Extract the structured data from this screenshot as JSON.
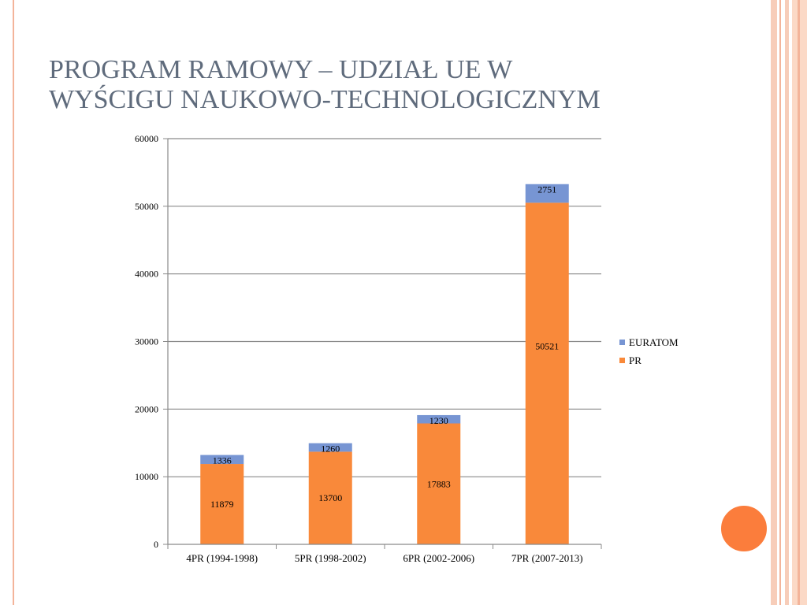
{
  "slide": {
    "title": "PROGRAM RAMOWY – UDZIAŁ UE W\nWYŚCIGU NAUKOWO-TECHNOLOGICZNYM",
    "colors": {
      "title": "#5f6b7c",
      "accent_orange": "#fb7d3c",
      "decor_light": "#f7cdb9"
    }
  },
  "chart_data": {
    "type": "bar",
    "stacked": true,
    "categories": [
      "4PR (1994-1998)",
      "5PR (1998-2002)",
      "6PR (2002-2006)",
      "7PR (2007-2013)"
    ],
    "series": [
      {
        "name": "PR",
        "values": [
          11879,
          13700,
          17883,
          50521
        ],
        "color": "#f9893a"
      },
      {
        "name": "EURATOM",
        "values": [
          1336,
          1260,
          1230,
          2751
        ],
        "color": "#7795d3"
      }
    ],
    "legend_order": [
      "EURATOM",
      "PR"
    ],
    "ylim": [
      0,
      60000
    ],
    "yticks": [
      0,
      10000,
      20000,
      30000,
      40000,
      50000,
      60000
    ],
    "grid": true,
    "legend": "right",
    "data_labels": true
  }
}
